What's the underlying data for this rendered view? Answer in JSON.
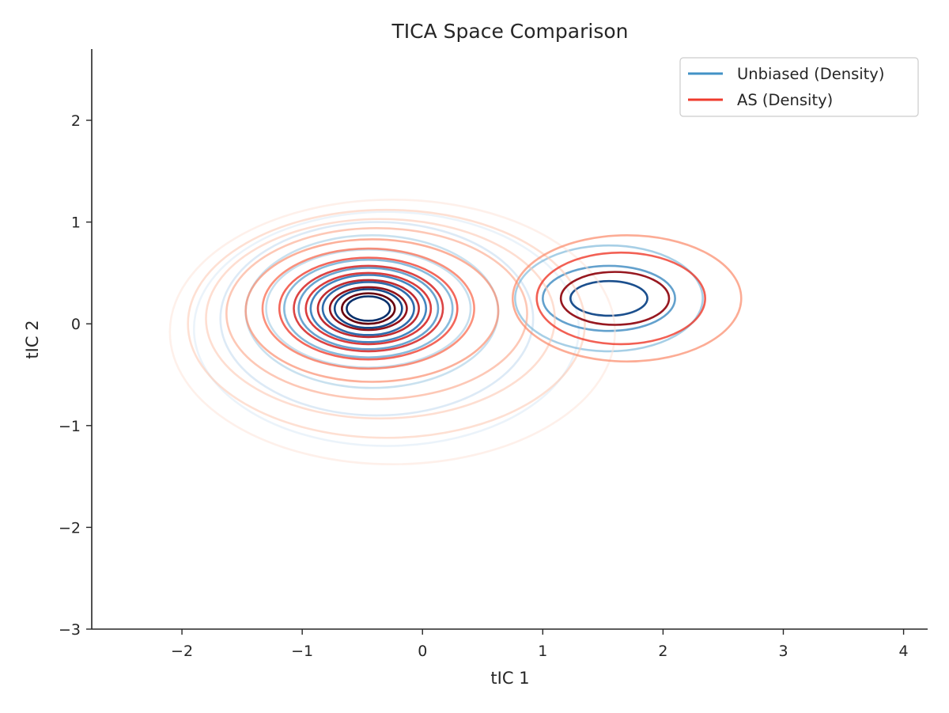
{
  "chart_data": {
    "type": "contour",
    "title": "TICA Space Comparison",
    "xlabel": "tIC 1",
    "ylabel": "tIC 2",
    "xlim": [
      -2.75,
      4.2
    ],
    "ylim": [
      -3.0,
      2.7
    ],
    "xticks": [
      -2,
      -1,
      0,
      1,
      2,
      3,
      4
    ],
    "yticks": [
      -3,
      -2,
      -1,
      0,
      1,
      2
    ],
    "grid": false,
    "legend_position": "top-right",
    "series": [
      {
        "name": "Unbiased (Density)",
        "color": "#4292c6",
        "colormap": "Blues",
        "level_colors": [
          "#dbe9f6",
          "#c6dbef",
          "#a9cfe5",
          "#82bbdb",
          "#5ea3d0",
          "#3f8bc2",
          "#2271b5",
          "#1459a1",
          "#0a4284",
          "#08306b"
        ],
        "contours": [
          {
            "center": [
              -0.45,
              0.15
            ],
            "rx": 0.18,
            "ry": 0.12
          },
          {
            "center": [
              -0.45,
              0.15
            ],
            "rx": 0.28,
            "ry": 0.19
          },
          {
            "center": [
              -0.45,
              0.15
            ],
            "rx": 0.38,
            "ry": 0.26
          },
          {
            "center": [
              -0.45,
              0.15
            ],
            "rx": 0.48,
            "ry": 0.33
          },
          {
            "center": [
              -0.45,
              0.15
            ],
            "rx": 0.58,
            "ry": 0.4
          },
          {
            "center": [
              -0.45,
              0.15
            ],
            "rx": 0.7,
            "ry": 0.48
          },
          {
            "center": [
              -0.45,
              0.15
            ],
            "rx": 0.85,
            "ry": 0.58
          },
          {
            "center": [
              1.55,
              0.25
            ],
            "rx": 0.32,
            "ry": 0.17
          },
          {
            "center": [
              -0.42,
              0.12
            ],
            "rx": 1.05,
            "ry": 0.75
          },
          {
            "center": [
              1.55,
              0.25
            ],
            "rx": 0.55,
            "ry": 0.32
          },
          {
            "center": [
              -0.38,
              0.05
            ],
            "rx": 1.3,
            "ry": 0.95
          },
          {
            "center": [
              1.55,
              0.25
            ],
            "rx": 0.78,
            "ry": 0.52
          },
          {
            "center": [
              -0.3,
              -0.05
            ],
            "rx": 1.6,
            "ry": 1.15
          }
        ]
      },
      {
        "name": "AS (Density)",
        "color": "#ef3b2c",
        "colormap": "Reds",
        "level_colors": [
          "#fee4d8",
          "#fdc9b4",
          "#fcab8f",
          "#fb8a6a",
          "#f96a4e",
          "#ef3b2c",
          "#d42020",
          "#b91419",
          "#900a12",
          "#67000d"
        ],
        "contours": [
          {
            "center": [
              -0.45,
              0.15
            ],
            "rx": 0.22,
            "ry": 0.15
          },
          {
            "center": [
              -0.45,
              0.15
            ],
            "rx": 0.32,
            "ry": 0.21
          },
          {
            "center": [
              -0.45,
              0.15
            ],
            "rx": 0.42,
            "ry": 0.28
          },
          {
            "center": [
              -0.45,
              0.15
            ],
            "rx": 0.52,
            "ry": 0.35
          },
          {
            "center": [
              -0.45,
              0.15
            ],
            "rx": 0.62,
            "ry": 0.42
          },
          {
            "center": [
              -0.45,
              0.15
            ],
            "rx": 0.74,
            "ry": 0.5
          },
          {
            "center": [
              -0.45,
              0.15
            ],
            "rx": 0.88,
            "ry": 0.59
          },
          {
            "center": [
              -0.42,
              0.13
            ],
            "rx": 1.05,
            "ry": 0.7
          },
          {
            "center": [
              -0.38,
              0.1
            ],
            "rx": 1.25,
            "ry": 0.84
          },
          {
            "center": [
              1.6,
              0.25
            ],
            "rx": 0.45,
            "ry": 0.26
          },
          {
            "center": [
              -0.35,
              0.05
            ],
            "rx": 1.45,
            "ry": 0.98
          },
          {
            "center": [
              1.65,
              0.25
            ],
            "rx": 0.7,
            "ry": 0.45
          },
          {
            "center": [
              -0.3,
              0.0
            ],
            "rx": 1.65,
            "ry": 1.12
          },
          {
            "center": [
              1.7,
              0.25
            ],
            "rx": 0.95,
            "ry": 0.62
          },
          {
            "center": [
              -0.25,
              -0.08
            ],
            "rx": 1.85,
            "ry": 1.3
          }
        ]
      }
    ]
  }
}
